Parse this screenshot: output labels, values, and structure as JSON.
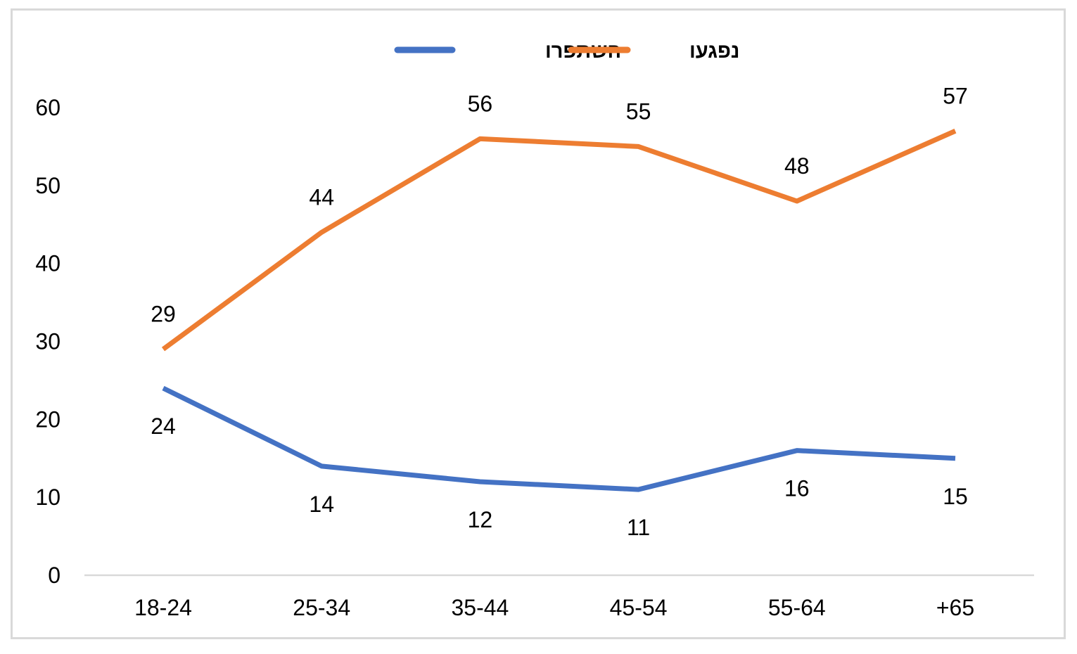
{
  "chart_data": {
    "type": "line",
    "categories": [
      "18-24",
      "25-34",
      "35-44",
      "45-54",
      "55-64",
      "+65"
    ],
    "series": [
      {
        "name": "השתפרו",
        "color": "#4472c4",
        "values": [
          24,
          14,
          12,
          11,
          16,
          15
        ],
        "label_position": "below"
      },
      {
        "name": "נפגעו",
        "color": "#ed7d31",
        "values": [
          29,
          44,
          56,
          55,
          48,
          57
        ],
        "label_position": "above"
      }
    ],
    "title": "",
    "xlabel": "",
    "ylabel": "",
    "ylim": [
      0,
      60
    ],
    "yticks": [
      0,
      10,
      20,
      30,
      40,
      50,
      60
    ],
    "grid": false,
    "legend_position": "top-center",
    "data_labels": true
  }
}
